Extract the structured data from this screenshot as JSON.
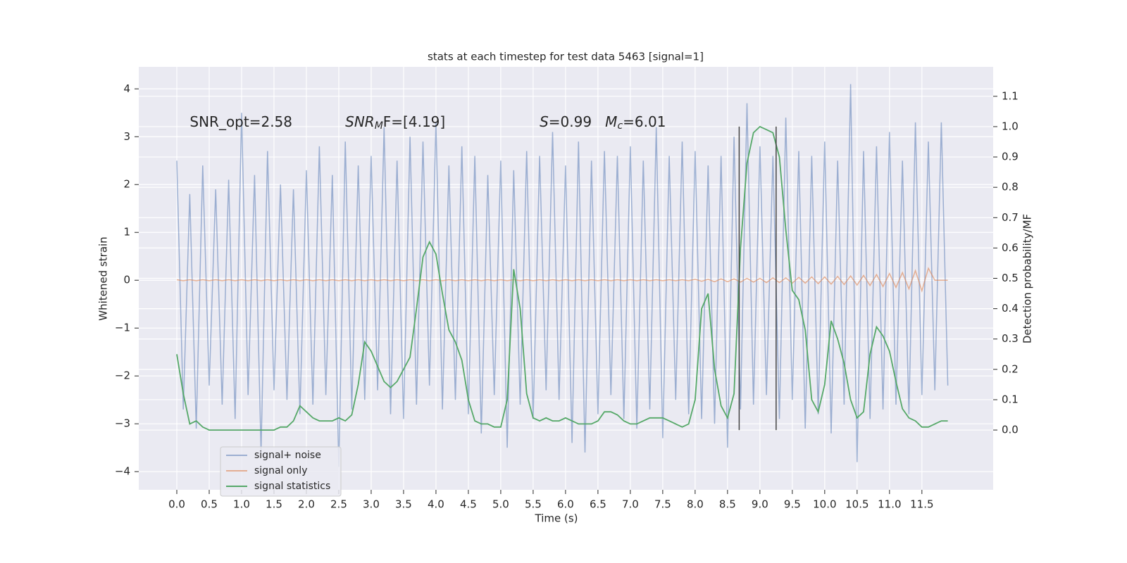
{
  "chart_data": {
    "type": "line",
    "title": "stats at each timestep for test data 5463 [signal=1]",
    "xlabel": "Time (s)",
    "ylabel": "Whitened strain",
    "y2label": "Detection probability/MF",
    "x": [
      0.0,
      0.1,
      0.2,
      0.3,
      0.4,
      0.5,
      0.6,
      0.7,
      0.8,
      0.9,
      1.0,
      1.1,
      1.2,
      1.3,
      1.4,
      1.5,
      1.6,
      1.7,
      1.8,
      1.9,
      2.0,
      2.1,
      2.2,
      2.3,
      2.4,
      2.5,
      2.6,
      2.7,
      2.8,
      2.9,
      3.0,
      3.1,
      3.2,
      3.3,
      3.4,
      3.5,
      3.6,
      3.7,
      3.8,
      3.9,
      4.0,
      4.1,
      4.2,
      4.3,
      4.4,
      4.5,
      4.6,
      4.7,
      4.8,
      4.9,
      5.0,
      5.1,
      5.2,
      5.3,
      5.4,
      5.5,
      5.6,
      5.7,
      5.8,
      5.9,
      6.0,
      6.1,
      6.2,
      6.3,
      6.4,
      6.5,
      6.6,
      6.7,
      6.8,
      6.9,
      7.0,
      7.1,
      7.2,
      7.3,
      7.4,
      7.5,
      7.6,
      7.7,
      7.8,
      7.9,
      8.0,
      8.1,
      8.2,
      8.3,
      8.4,
      8.5,
      8.6,
      8.7,
      8.8,
      8.9,
      9.0,
      9.1,
      9.2,
      9.3,
      9.4,
      9.5,
      9.6,
      9.7,
      9.8,
      9.9,
      10.0,
      10.1,
      10.2,
      10.3,
      10.4,
      10.5,
      10.6,
      10.7,
      10.8,
      10.9,
      11.0,
      11.1,
      11.2,
      11.3,
      11.4,
      11.5,
      11.6,
      11.7,
      11.8,
      11.9
    ],
    "series": [
      {
        "name": "signal+ noise",
        "color": "#4c72b0",
        "opacity": 0.5,
        "values": [
          2.5,
          -2.7,
          1.8,
          -3.1,
          2.4,
          -2.2,
          1.9,
          -2.6,
          2.1,
          -2.9,
          3.5,
          -2.4,
          2.2,
          -3.6,
          2.7,
          -2.3,
          2.0,
          -2.5,
          1.9,
          -2.8,
          2.3,
          -2.6,
          2.8,
          -2.4,
          2.2,
          -3.9,
          2.9,
          -2.7,
          2.4,
          -2.5,
          2.6,
          -2.3,
          3.2,
          -2.8,
          2.5,
          -2.9,
          3.0,
          -2.6,
          2.9,
          -2.2,
          3.3,
          -2.7,
          2.4,
          -2.5,
          2.8,
          -2.8,
          2.6,
          -3.2,
          2.2,
          -2.4,
          2.5,
          -3.5,
          2.3,
          -2.6,
          2.7,
          -2.9,
          2.6,
          -2.3,
          3.1,
          -2.5,
          2.4,
          -3.4,
          2.9,
          -3.6,
          2.5,
          -2.8,
          2.7,
          -2.4,
          2.6,
          -2.9,
          2.8,
          -3.1,
          2.5,
          -2.7,
          3.2,
          -3.3,
          2.6,
          -2.5,
          2.9,
          -2.8,
          2.7,
          -2.9,
          2.4,
          -3.0,
          2.6,
          -3.5,
          3.0,
          -2.7,
          3.7,
          -2.6,
          2.8,
          -2.4,
          2.6,
          -2.9,
          3.4,
          -2.5,
          2.7,
          -3.1,
          2.6,
          -2.8,
          2.9,
          -3.2,
          2.5,
          -2.6,
          4.1,
          -3.8,
          2.7,
          -2.9,
          2.8,
          -2.7,
          3.1,
          -2.6,
          2.5,
          -2.8,
          3.3,
          -2.4,
          2.9,
          -2.3,
          3.3,
          -2.2
        ]
      },
      {
        "name": "signal only",
        "color": "#dd8452",
        "opacity": 0.6,
        "values": [
          0.01,
          -0.01,
          0.01,
          -0.01,
          0.01,
          -0.01,
          0.01,
          -0.01,
          0.01,
          -0.01,
          0.01,
          -0.01,
          0.01,
          -0.01,
          0.01,
          -0.01,
          0.01,
          -0.01,
          0.01,
          -0.01,
          0.01,
          -0.01,
          0.01,
          -0.01,
          0.01,
          -0.01,
          0.01,
          -0.01,
          0.01,
          -0.01,
          0.01,
          -0.01,
          0.01,
          -0.01,
          0.01,
          -0.01,
          0.01,
          -0.01,
          0.01,
          -0.01,
          0.01,
          -0.01,
          0.01,
          -0.01,
          0.01,
          -0.01,
          0.01,
          -0.01,
          0.01,
          -0.01,
          0.01,
          -0.01,
          0.01,
          -0.01,
          0.01,
          -0.01,
          0.01,
          -0.01,
          0.01,
          -0.01,
          0.01,
          -0.01,
          0.01,
          -0.01,
          0.01,
          -0.01,
          0.01,
          -0.01,
          0.01,
          -0.01,
          0.01,
          -0.01,
          0.01,
          -0.01,
          0.01,
          -0.01,
          0.01,
          -0.01,
          0.01,
          -0.01,
          0.02,
          -0.02,
          0.02,
          -0.03,
          0.03,
          -0.03,
          0.03,
          -0.04,
          0.04,
          -0.04,
          0.04,
          -0.05,
          0.05,
          -0.05,
          0.05,
          -0.06,
          0.06,
          -0.06,
          0.07,
          -0.07,
          0.07,
          -0.08,
          0.08,
          -0.09,
          0.09,
          -0.1,
          0.1,
          -0.11,
          0.12,
          -0.13,
          0.14,
          -0.15,
          0.16,
          -0.18,
          0.2,
          -0.22,
          0.25,
          0,
          0,
          0
        ]
      },
      {
        "name": "signal statistics",
        "color": "#55a868",
        "opacity": 1,
        "axis": "y2",
        "values": [
          0.25,
          0.12,
          0.02,
          0.03,
          0.01,
          0.0,
          0.0,
          0.0,
          0.0,
          0.0,
          0.0,
          0.0,
          0.0,
          0.0,
          0.0,
          0.0,
          0.01,
          0.01,
          0.03,
          0.08,
          0.06,
          0.04,
          0.03,
          0.03,
          0.03,
          0.04,
          0.03,
          0.05,
          0.15,
          0.29,
          0.26,
          0.21,
          0.16,
          0.14,
          0.16,
          0.2,
          0.24,
          0.4,
          0.57,
          0.62,
          0.58,
          0.45,
          0.33,
          0.29,
          0.23,
          0.1,
          0.03,
          0.02,
          0.02,
          0.01,
          0.01,
          0.1,
          0.53,
          0.4,
          0.12,
          0.04,
          0.03,
          0.04,
          0.03,
          0.03,
          0.04,
          0.03,
          0.02,
          0.02,
          0.02,
          0.03,
          0.06,
          0.06,
          0.05,
          0.03,
          0.02,
          0.02,
          0.03,
          0.04,
          0.04,
          0.04,
          0.03,
          0.02,
          0.01,
          0.02,
          0.1,
          0.4,
          0.45,
          0.2,
          0.08,
          0.04,
          0.12,
          0.6,
          0.88,
          0.98,
          1.0,
          0.99,
          0.98,
          0.9,
          0.66,
          0.46,
          0.43,
          0.33,
          0.1,
          0.06,
          0.15,
          0.36,
          0.3,
          0.22,
          0.1,
          0.04,
          0.06,
          0.25,
          0.34,
          0.31,
          0.26,
          0.16,
          0.07,
          0.04,
          0.03,
          0.01,
          0.01,
          0.02,
          0.03,
          0.03
        ]
      }
    ],
    "vlines": {
      "x": [
        8.68,
        9.25
      ],
      "y2": [
        0,
        1.0
      ],
      "color": "#444444"
    },
    "annotations": [
      {
        "x": 0.2,
        "y": 3.3,
        "parts": [
          "SNR_opt=2.58"
        ]
      },
      {
        "x": 2.6,
        "y": 3.3,
        "parts": [
          "SNR",
          "M",
          "F=[4.19]"
        ]
      },
      {
        "x": 5.6,
        "y": 3.3,
        "parts": [
          "S",
          "=0.99   ",
          "M",
          "c",
          "=6.01"
        ]
      }
    ],
    "xlim": [
      -0.587,
      12.6
    ],
    "ylim": [
      -4.38,
      4.46
    ],
    "y2lim": [
      -0.197,
      1.197
    ],
    "xticks": [
      {
        "value": 0,
        "label": "0.0"
      },
      {
        "value": 0.5,
        "label": "0.5"
      },
      {
        "value": 1,
        "label": "1.0"
      },
      {
        "value": 1.5,
        "label": "1.5"
      },
      {
        "value": 2,
        "label": "2.0"
      },
      {
        "value": 2.5,
        "label": "2.5"
      },
      {
        "value": 3,
        "label": "3.0"
      },
      {
        "value": 3.5,
        "label": "3.5"
      },
      {
        "value": 4,
        "label": "4.0"
      },
      {
        "value": 4.5,
        "label": "4.5"
      },
      {
        "value": 5,
        "label": "5.0"
      },
      {
        "value": 5.5,
        "label": "5.5"
      },
      {
        "value": 6,
        "label": "6.0"
      },
      {
        "value": 6.5,
        "label": "6.5"
      },
      {
        "value": 7,
        "label": "7.0"
      },
      {
        "value": 7.5,
        "label": "7.5"
      },
      {
        "value": 8,
        "label": "8.0"
      },
      {
        "value": 8.5,
        "label": "8.5"
      },
      {
        "value": 9,
        "label": "9.0"
      },
      {
        "value": 9.5,
        "label": "9.5"
      },
      {
        "value": 10,
        "label": "10.0"
      },
      {
        "value": 10.5,
        "label": "10.5"
      },
      {
        "value": 11,
        "label": "11.0"
      },
      {
        "value": 11.5,
        "label": "11.5"
      }
    ],
    "yticks": [
      {
        "value": -4,
        "label": "−4"
      },
      {
        "value": -3,
        "label": "−3"
      },
      {
        "value": -2,
        "label": "−2"
      },
      {
        "value": -1,
        "label": "−1"
      },
      0,
      1,
      2,
      3,
      4
    ],
    "y2ticks": [
      {
        "value": 0,
        "label": "0.0"
      },
      0.1,
      0.2,
      0.3,
      0.4,
      0.5,
      0.6,
      0.7,
      0.8,
      0.9,
      {
        "value": 1,
        "label": "1.0"
      },
      1.1
    ],
    "grid": true,
    "background": "#eaeaf2",
    "legend": "lower left"
  }
}
